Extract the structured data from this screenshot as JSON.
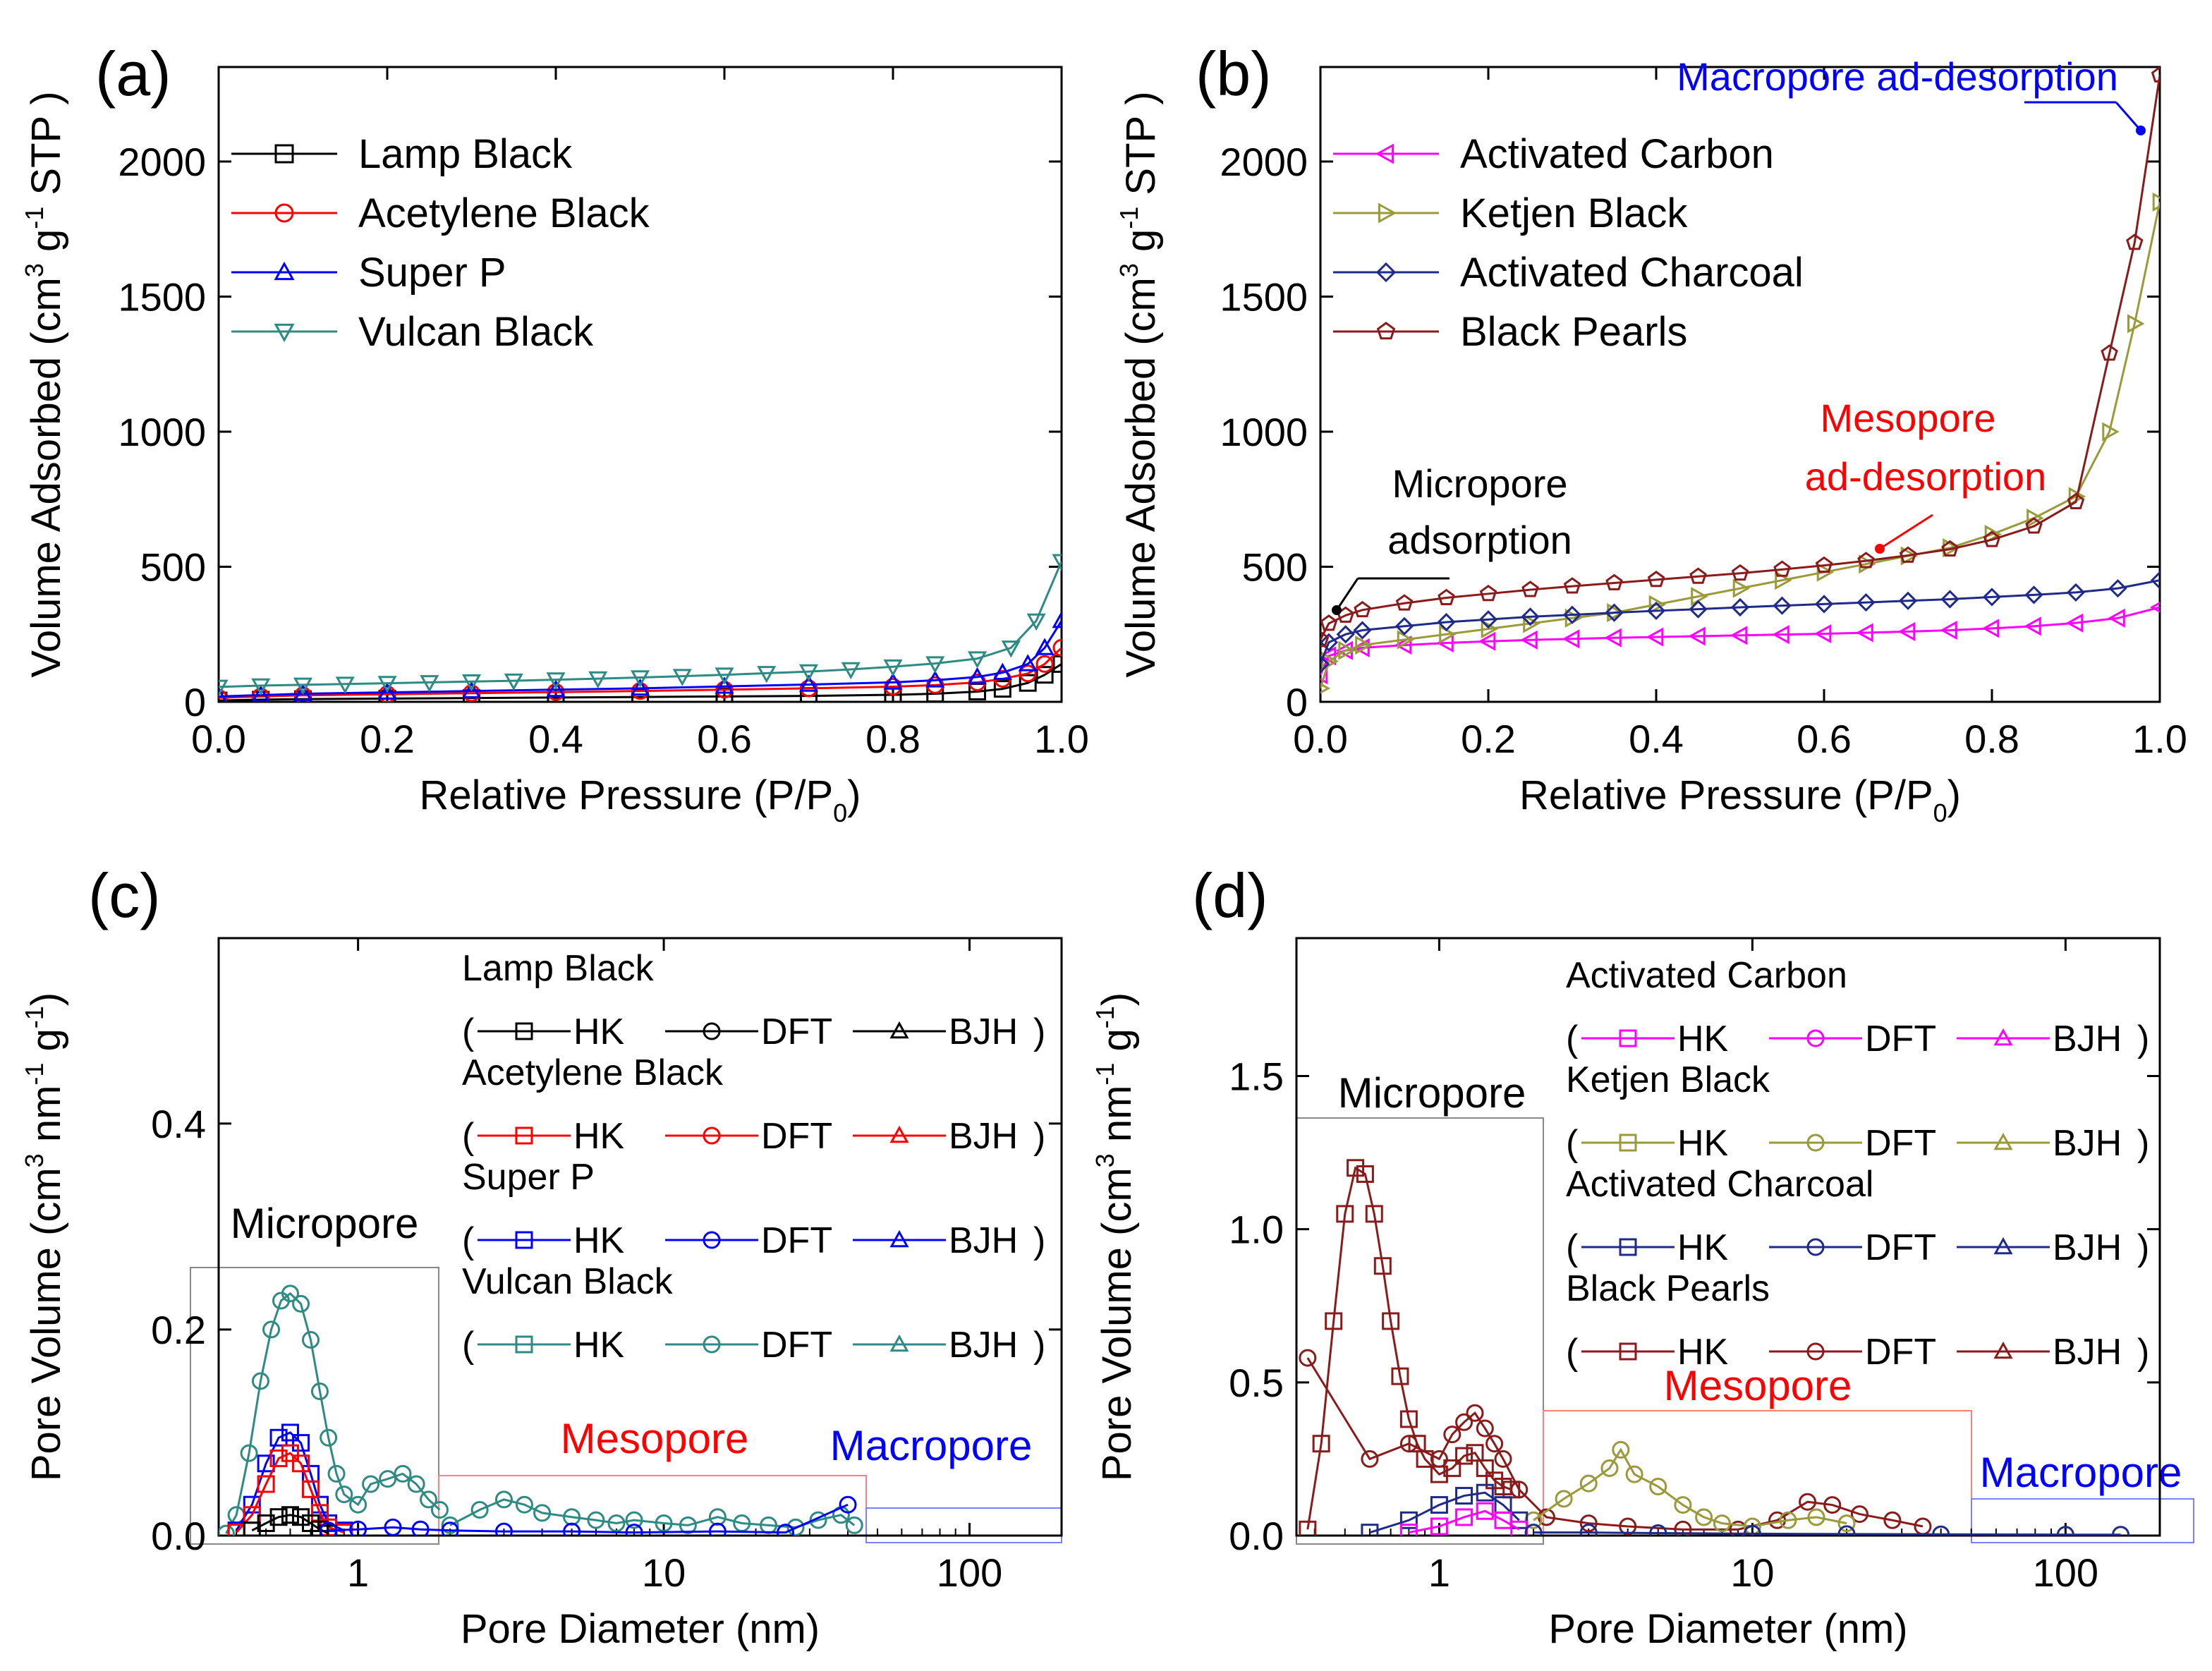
{
  "chart_data": [
    {
      "panel": "(a)",
      "type": "line",
      "xlabel_main": "Relative Pressure (P/P",
      "xlabel_sub": "0",
      "xlabel_end": ")",
      "ylabel_parts": [
        "Volume Adsorbed (cm",
        "3",
        " g",
        "-1",
        " STP )"
      ],
      "xlim": [
        0,
        1
      ],
      "ylim": [
        0,
        2350
      ],
      "x_ticks": [
        "0.0",
        "0.2",
        "0.4",
        "0.6",
        "0.8",
        "1.0"
      ],
      "y_ticks": [
        "0",
        "500",
        "1000",
        "1500",
        "2000"
      ],
      "legend": [
        "Lamp Black",
        "Acetylene Black",
        "Super P",
        "Vulcan Black"
      ],
      "series": [
        {
          "name": "Lamp Black",
          "color": "#000000",
          "marker": "square",
          "x": [
            0,
            0.05,
            0.1,
            0.2,
            0.3,
            0.4,
            0.5,
            0.6,
            0.7,
            0.8,
            0.85,
            0.9,
            0.93,
            0.96,
            0.98,
            1.0
          ],
          "y": [
            5,
            8,
            10,
            12,
            14,
            16,
            18,
            20,
            22,
            26,
            30,
            38,
            48,
            70,
            100,
            140
          ]
        },
        {
          "name": "Acetylene Black",
          "color": "#ff0000",
          "marker": "circle",
          "x": [
            0,
            0.05,
            0.1,
            0.2,
            0.3,
            0.4,
            0.5,
            0.6,
            0.7,
            0.8,
            0.85,
            0.9,
            0.93,
            0.96,
            0.98,
            1.0
          ],
          "y": [
            15,
            20,
            24,
            28,
            32,
            36,
            40,
            45,
            50,
            56,
            62,
            72,
            85,
            105,
            140,
            200
          ]
        },
        {
          "name": "Super P",
          "color": "#0000ff",
          "marker": "triangle-up",
          "x": [
            0,
            0.05,
            0.1,
            0.2,
            0.3,
            0.4,
            0.5,
            0.6,
            0.7,
            0.8,
            0.85,
            0.9,
            0.93,
            0.96,
            0.98,
            1.0
          ],
          "y": [
            20,
            25,
            30,
            35,
            40,
            45,
            50,
            57,
            64,
            72,
            80,
            92,
            108,
            140,
            200,
            300
          ]
        },
        {
          "name": "Vulcan Black",
          "color": "#2e8b84",
          "marker": "triangle-down",
          "x": [
            0,
            0.05,
            0.1,
            0.15,
            0.2,
            0.25,
            0.3,
            0.35,
            0.4,
            0.45,
            0.5,
            0.55,
            0.6,
            0.65,
            0.7,
            0.75,
            0.8,
            0.85,
            0.9,
            0.94,
            0.97,
            1.0
          ],
          "y": [
            55,
            60,
            63,
            66,
            69,
            72,
            75,
            78,
            82,
            86,
            90,
            95,
            100,
            106,
            112,
            120,
            130,
            142,
            160,
            200,
            300,
            520
          ]
        }
      ]
    },
    {
      "panel": "(b)",
      "type": "line",
      "xlabel_main": "Relative Pressure (P/P",
      "xlabel_sub": "0",
      "xlabel_end": ")",
      "ylabel_parts": [
        "Volume Adsorbed (cm",
        "3",
        " g",
        "-1",
        " STP )"
      ],
      "xlim": [
        0,
        1
      ],
      "ylim": [
        0,
        2350
      ],
      "x_ticks": [
        "0.0",
        "0.2",
        "0.4",
        "0.6",
        "0.8",
        "1.0"
      ],
      "y_ticks": [
        "0",
        "500",
        "1000",
        "1500",
        "2000"
      ],
      "legend": [
        "Activated Carbon",
        "Ketjen Black",
        "Activated Charcoal",
        "Black Pearls"
      ],
      "annotations": {
        "macro": "Macropore  ad-desorption",
        "meso_1": "Mesopore",
        "meso_2": "ad-desorption",
        "micro_1": "Micropore",
        "micro_2": "adsorption"
      },
      "annotation_colors": {
        "macro": "#0000ff",
        "meso": "#ff0000",
        "micro": "#000000"
      },
      "series": [
        {
          "name": "Activated Carbon",
          "color": "#ff00ff",
          "marker": "triangle-left",
          "x": [
            0,
            0.01,
            0.03,
            0.05,
            0.1,
            0.15,
            0.2,
            0.25,
            0.3,
            0.35,
            0.4,
            0.45,
            0.5,
            0.55,
            0.6,
            0.65,
            0.7,
            0.75,
            0.8,
            0.85,
            0.9,
            0.95,
            1.0
          ],
          "y": [
            100,
            170,
            190,
            200,
            210,
            218,
            224,
            229,
            233,
            237,
            240,
            243,
            246,
            249,
            252,
            256,
            260,
            265,
            272,
            280,
            292,
            310,
            350
          ]
        },
        {
          "name": "Ketjen Black",
          "color": "#9a9a3a",
          "marker": "triangle-right",
          "x": [
            0,
            0.01,
            0.03,
            0.05,
            0.1,
            0.15,
            0.2,
            0.25,
            0.3,
            0.35,
            0.4,
            0.45,
            0.5,
            0.55,
            0.6,
            0.65,
            0.7,
            0.75,
            0.8,
            0.85,
            0.9,
            0.94,
            0.97,
            1.0
          ],
          "y": [
            50,
            150,
            190,
            210,
            230,
            250,
            270,
            290,
            310,
            330,
            360,
            390,
            420,
            450,
            480,
            510,
            540,
            570,
            620,
            680,
            760,
            1000,
            1400,
            1850
          ]
        },
        {
          "name": "Activated Charcoal",
          "color": "#1f2a8a",
          "marker": "diamond",
          "x": [
            0,
            0.01,
            0.03,
            0.05,
            0.1,
            0.15,
            0.2,
            0.25,
            0.3,
            0.35,
            0.4,
            0.45,
            0.5,
            0.55,
            0.6,
            0.65,
            0.7,
            0.75,
            0.8,
            0.85,
            0.9,
            0.95,
            1.0
          ],
          "y": [
            140,
            220,
            250,
            265,
            280,
            295,
            305,
            315,
            322,
            330,
            337,
            343,
            350,
            356,
            362,
            368,
            374,
            380,
            388,
            396,
            405,
            420,
            450
          ]
        },
        {
          "name": "Black Pearls",
          "color": "#8b1a1a",
          "marker": "pentagon",
          "x": [
            0,
            0.01,
            0.03,
            0.05,
            0.1,
            0.15,
            0.2,
            0.25,
            0.3,
            0.35,
            0.4,
            0.45,
            0.5,
            0.55,
            0.6,
            0.65,
            0.7,
            0.75,
            0.8,
            0.85,
            0.9,
            0.94,
            0.97,
            1.0
          ],
          "y": [
            230,
            290,
            320,
            340,
            365,
            385,
            400,
            415,
            428,
            440,
            452,
            464,
            476,
            490,
            505,
            522,
            542,
            565,
            600,
            650,
            740,
            1290,
            1700,
            2320
          ]
        }
      ]
    },
    {
      "panel": "(c)",
      "type": "scatter",
      "xscale": "log",
      "xlabel_main": "Pore Diameter (nm)",
      "ylabel_parts": [
        "Pore Volume (cm",
        "3",
        " nm",
        "-1",
        " g",
        "-1",
        ")"
      ],
      "xlim": [
        0.35,
        200
      ],
      "ylim": [
        0,
        0.58
      ],
      "x_ticks": [
        "1",
        "10",
        "100"
      ],
      "y_ticks": [
        "0.0",
        "0.2",
        "0.4"
      ],
      "region_labels": {
        "micro": "Micropore",
        "meso": "Mesopore",
        "macro": "Macropore"
      },
      "region_colors": {
        "micro": "#000000",
        "meso": "#ff0000",
        "macro": "#0000ff"
      },
      "legend_methods": [
        "HK",
        "DFT",
        "BJH"
      ],
      "legend_groups": [
        {
          "name": "Lamp Black",
          "color": "#000000"
        },
        {
          "name": "Acetylene Black",
          "color": "#ff0000"
        },
        {
          "name": "Super P",
          "color": "#0000ff"
        },
        {
          "name": "Vulcan Black",
          "color": "#2e8b84"
        }
      ],
      "series": [
        {
          "name": "Vulcan Black HK",
          "color": "#2e8b84",
          "marker": "circle",
          "x": [
            0.37,
            0.4,
            0.44,
            0.48,
            0.52,
            0.56,
            0.6,
            0.65,
            0.7,
            0.75,
            0.8,
            0.85,
            0.9,
            1.0,
            1.1,
            1.25,
            1.4,
            1.55,
            1.7,
            1.85
          ],
          "y": [
            0.002,
            0.02,
            0.08,
            0.15,
            0.2,
            0.228,
            0.235,
            0.225,
            0.19,
            0.14,
            0.095,
            0.06,
            0.04,
            0.03,
            0.05,
            0.055,
            0.06,
            0.05,
            0.035,
            0.025
          ]
        },
        {
          "name": "Vulcan Black DFT",
          "color": "#2e8b84",
          "marker": "circle",
          "x": [
            2.0,
            2.5,
            3.0,
            3.5,
            4.0,
            5.0,
            6.0,
            7.0,
            8.0,
            10,
            12,
            15,
            18,
            22,
            27,
            32,
            38,
            42
          ],
          "y": [
            0.01,
            0.025,
            0.035,
            0.03,
            0.022,
            0.018,
            0.015,
            0.012,
            0.015,
            0.012,
            0.01,
            0.018,
            0.012,
            0.01,
            0.008,
            0.015,
            0.02,
            0.01
          ]
        },
        {
          "name": "Super P HK",
          "color": "#0000ff",
          "marker": "square",
          "x": [
            0.4,
            0.45,
            0.5,
            0.55,
            0.6,
            0.65,
            0.7,
            0.75,
            0.8,
            0.9
          ],
          "y": [
            0.005,
            0.03,
            0.07,
            0.095,
            0.1,
            0.09,
            0.06,
            0.03,
            0.012,
            0.005
          ]
        },
        {
          "name": "Acetylene Black HK",
          "color": "#ff0000",
          "marker": "square",
          "x": [
            0.4,
            0.45,
            0.5,
            0.55,
            0.6,
            0.65,
            0.7,
            0.75,
            0.8,
            0.9
          ],
          "y": [
            0.003,
            0.02,
            0.05,
            0.075,
            0.08,
            0.07,
            0.045,
            0.022,
            0.008,
            0.003
          ]
        },
        {
          "name": "Lamp Black HK",
          "color": "#000000",
          "marker": "square",
          "x": [
            0.45,
            0.5,
            0.55,
            0.6,
            0.65,
            0.7,
            0.75,
            0.8
          ],
          "y": [
            0.005,
            0.012,
            0.018,
            0.02,
            0.018,
            0.012,
            0.006,
            0.002
          ]
        },
        {
          "name": "Super P DFT",
          "color": "#0000ff",
          "marker": "circle",
          "x": [
            0.8,
            1.0,
            1.3,
            1.6,
            2.0,
            3.0,
            5.0,
            8.0,
            15,
            25,
            40
          ],
          "y": [
            0.005,
            0.006,
            0.008,
            0.006,
            0.005,
            0.004,
            0.004,
            0.003,
            0.004,
            0.003,
            0.03
          ]
        }
      ]
    },
    {
      "panel": "(d)",
      "type": "scatter",
      "xscale": "log",
      "xlabel_main": "Pore Diameter (nm)",
      "ylabel_parts": [
        "Pore Volume (cm",
        "3",
        " nm",
        "-1",
        " g",
        "-1",
        ")"
      ],
      "xlim": [
        0.35,
        200
      ],
      "ylim": [
        0,
        1.95
      ],
      "x_ticks": [
        "1",
        "10",
        "100"
      ],
      "y_ticks": [
        "0.0",
        "0.5",
        "1.0",
        "1.5"
      ],
      "region_labels": {
        "micro": "Micropore",
        "meso": "Mesopore",
        "macro": "Macropore"
      },
      "region_colors": {
        "micro": "#000000",
        "meso": "#ff0000",
        "macro": "#0000ff"
      },
      "legend_methods": [
        "HK",
        "DFT",
        "BJH"
      ],
      "legend_groups": [
        {
          "name": "Activated Carbon",
          "color": "#ff00ff"
        },
        {
          "name": "Ketjen Black",
          "color": "#9a9a3a"
        },
        {
          "name": "Activated Charcoal",
          "color": "#1f2a8a"
        },
        {
          "name": "Black Pearls",
          "color": "#8b1a1a"
        }
      ],
      "series": [
        {
          "name": "Black Pearls HK",
          "color": "#8b1a1a",
          "marker": "square",
          "x": [
            0.38,
            0.42,
            0.46,
            0.5,
            0.54,
            0.58,
            0.62,
            0.66,
            0.7,
            0.75,
            0.8,
            0.85,
            0.9,
            1.0,
            1.1,
            1.2,
            1.3,
            1.4,
            1.5,
            1.6,
            1.7
          ],
          "y": [
            0.02,
            0.3,
            0.7,
            1.05,
            1.2,
            1.18,
            1.05,
            0.88,
            0.7,
            0.52,
            0.38,
            0.3,
            0.25,
            0.2,
            0.22,
            0.26,
            0.27,
            0.22,
            0.18,
            0.16,
            0.15
          ]
        },
        {
          "name": "Black Pearls DFT",
          "color": "#8b1a1a",
          "marker": "circle",
          "x": [
            0.38,
            0.6,
            0.8,
            1.0,
            1.1,
            1.2,
            1.3,
            1.4,
            1.5,
            1.6,
            1.8,
            2.2,
            3.0,
            4.0,
            6.0,
            9.0,
            12,
            15,
            18,
            22,
            28,
            35
          ],
          "y": [
            0.58,
            0.25,
            0.3,
            0.25,
            0.33,
            0.37,
            0.4,
            0.35,
            0.3,
            0.25,
            0.15,
            0.06,
            0.04,
            0.03,
            0.02,
            0.02,
            0.05,
            0.11,
            0.1,
            0.07,
            0.05,
            0.03
          ]
        },
        {
          "name": "Ketjen Black DFT",
          "color": "#9a9a3a",
          "marker": "circle",
          "x": [
            2.0,
            2.5,
            3.0,
            3.5,
            3.8,
            4.2,
            5.0,
            6.0,
            7.0,
            8.0,
            10,
            13,
            16,
            20
          ],
          "y": [
            0.05,
            0.12,
            0.17,
            0.22,
            0.28,
            0.2,
            0.16,
            0.1,
            0.06,
            0.04,
            0.03,
            0.05,
            0.06,
            0.04
          ]
        },
        {
          "name": "Activated Charcoal HK",
          "color": "#1f2a8a",
          "marker": "square",
          "x": [
            0.6,
            0.8,
            1.0,
            1.2,
            1.4,
            1.6,
            1.8
          ],
          "y": [
            0.01,
            0.05,
            0.1,
            0.13,
            0.14,
            0.1,
            0.05
          ]
        },
        {
          "name": "Activated Carbon HK",
          "color": "#ff00ff",
          "marker": "square",
          "x": [
            0.8,
            1.0,
            1.2,
            1.4,
            1.6,
            1.8
          ],
          "y": [
            0.01,
            0.03,
            0.06,
            0.08,
            0.05,
            0.02
          ]
        },
        {
          "name": "Activated Charcoal DFT",
          "color": "#1f2a8a",
          "marker": "circle",
          "x": [
            2.0,
            3.0,
            5.0,
            10,
            20,
            40,
            100,
            150
          ],
          "y": [
            0.01,
            0.01,
            0.008,
            0.006,
            0.005,
            0.004,
            0.003,
            0.003
          ]
        }
      ]
    }
  ]
}
